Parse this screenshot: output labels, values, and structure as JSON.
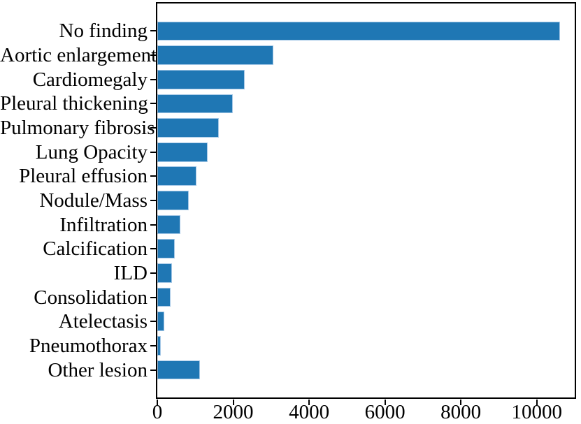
{
  "chart_data": {
    "type": "bar",
    "orientation": "horizontal",
    "title": "",
    "xlabel": "",
    "ylabel": "",
    "categories": [
      "No finding",
      "Aortic enlargement",
      "Cardiomegaly",
      "Pleural thickening",
      "Pulmonary fibrosis",
      "Lung Opacity",
      "Pleural effusion",
      "Nodule/Mass",
      "Infiltration",
      "Calcification",
      "ILD",
      "Consolidation",
      "Atelectasis",
      "Pneumothorax",
      "Other lesion"
    ],
    "values": [
      10606,
      3067,
      2300,
      1981,
      1617,
      1322,
      1032,
      826,
      613,
      454,
      386,
      353,
      186,
      86,
      1123
    ],
    "x_ticks": [
      0,
      2000,
      4000,
      6000,
      8000,
      10000
    ],
    "x_tick_labels": [
      "0",
      "2000",
      "4000",
      "6000",
      "8000",
      "10000"
    ],
    "xlim": [
      0,
      11000
    ],
    "grid": false,
    "legend": null,
    "bar_color": "#1f77b4",
    "bar_edge_color": "#a7c9e7",
    "axis_color": "#000000",
    "background_color": "#ffffff"
  }
}
